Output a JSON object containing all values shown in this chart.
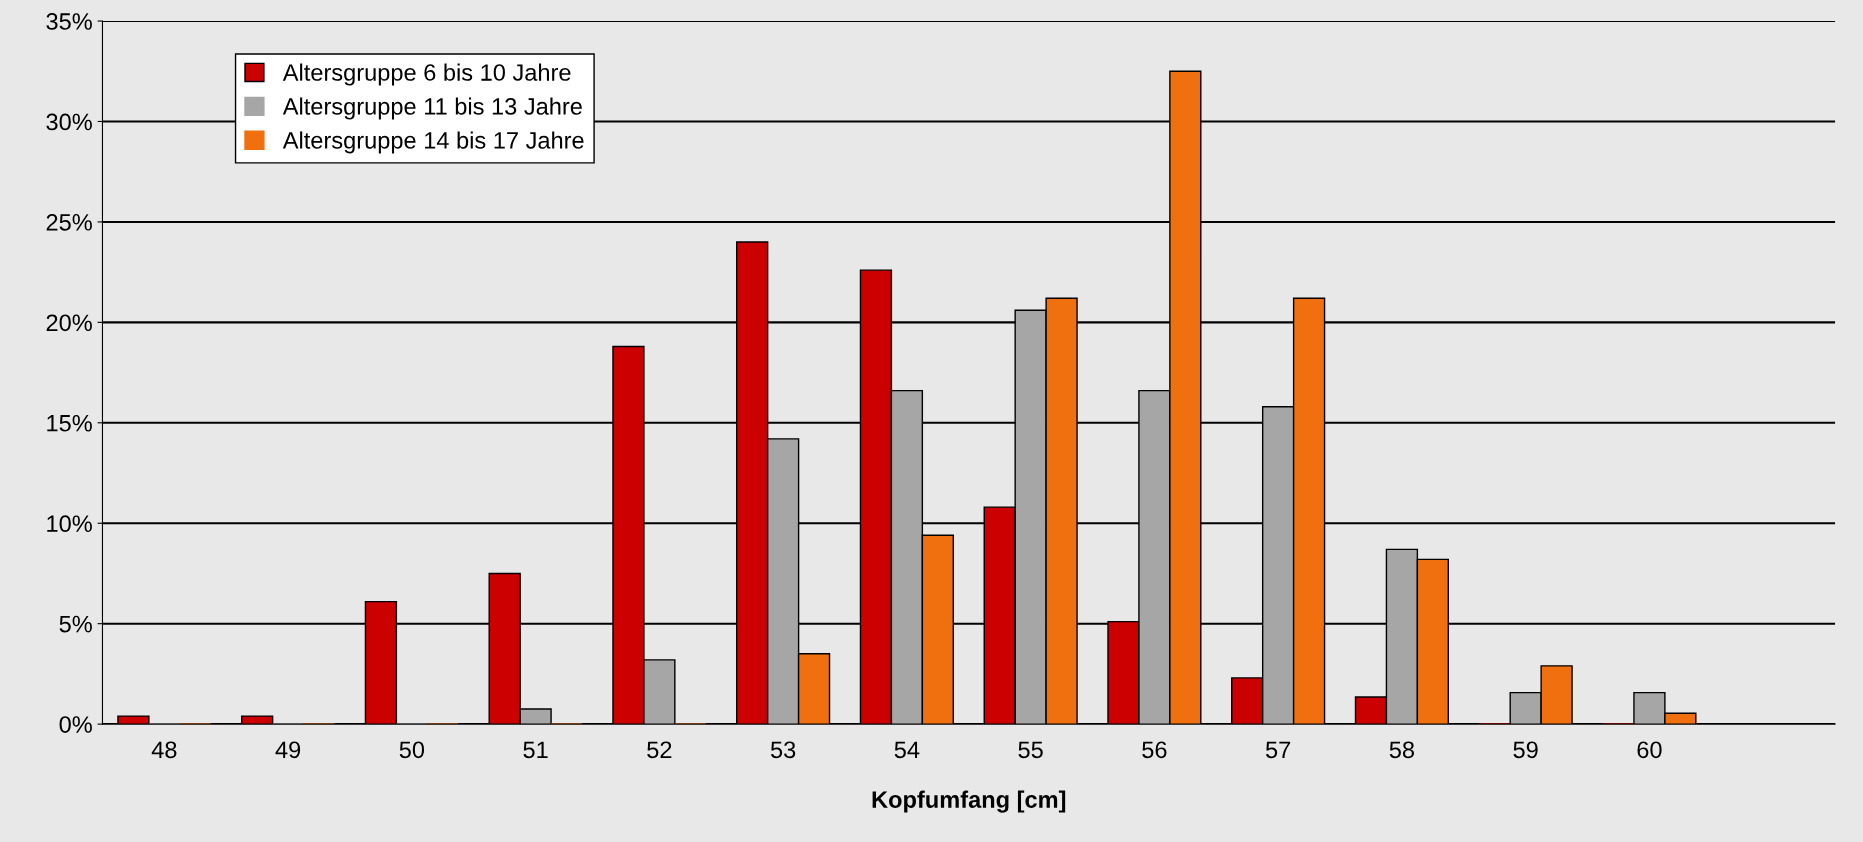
{
  "chart_data": {
    "type": "bar",
    "xlabel": "Kopfumfang [cm]",
    "categories": [
      "48",
      "49",
      "50",
      "51",
      "52",
      "53",
      "54",
      "55",
      "56",
      "57",
      "58",
      "59",
      "60",
      null
    ],
    "series": [
      {
        "name": "Altersgruppe 6 bis 10 Jahre",
        "color": "#cc0000",
        "values": [
          0.4,
          0.4,
          6.1,
          7.5,
          18.8,
          24.0,
          22.6,
          10.8,
          5.1,
          2.3,
          1.35,
          0,
          0,
          null
        ]
      },
      {
        "name": "Altersgruppe 11 bis 13 Jahre",
        "color": "#a6a6a6",
        "values": [
          0,
          0,
          0,
          0.75,
          3.2,
          14.2,
          16.6,
          20.6,
          16.6,
          15.8,
          8.7,
          1.57,
          1.57,
          null
        ]
      },
      {
        "name": "Altersgruppe 14 bis 17 Jahre",
        "color": "#f07010",
        "values": [
          0,
          0,
          0,
          0,
          0,
          3.5,
          9.4,
          21.2,
          32.5,
          21.2,
          8.2,
          2.9,
          0.54,
          null
        ]
      }
    ],
    "ylim": [
      0,
      35
    ],
    "yticks": [
      {
        "value": 0,
        "label": "0%"
      },
      {
        "value": 5,
        "label": "5%"
      },
      {
        "value": 10,
        "label": "10%"
      },
      {
        "value": 15,
        "label": "15%"
      },
      {
        "value": 20,
        "label": "20%"
      },
      {
        "value": 25,
        "label": "25%"
      },
      {
        "value": 30,
        "label": "30%"
      },
      {
        "value": 35,
        "label": "35%"
      }
    ],
    "grid": "y",
    "legend": "top left"
  }
}
